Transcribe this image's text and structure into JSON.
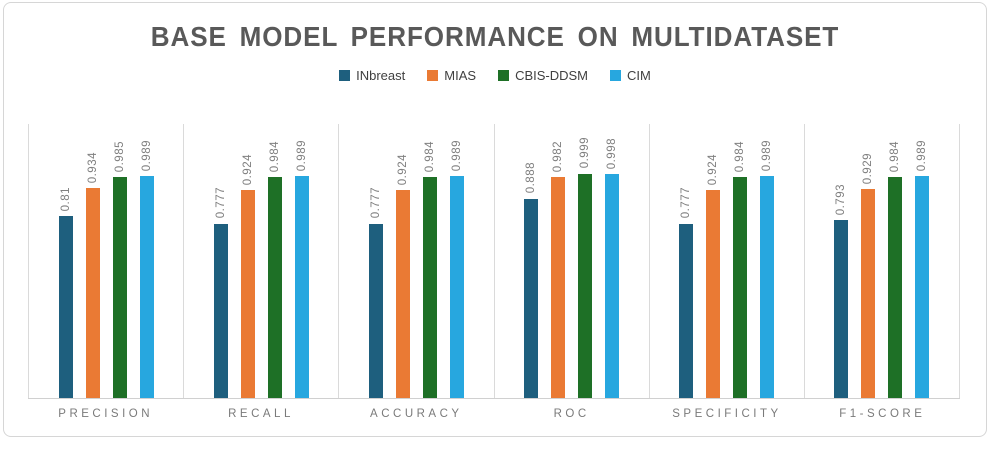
{
  "chart_data": {
    "type": "bar",
    "title": "BASE MODEL PERFORMANCE ON MULTIDATASET",
    "categories": [
      "PRECISION",
      "RECALL",
      "ACCURACY",
      "ROC",
      "SPECIFICITY",
      "F1-SCORE"
    ],
    "series": [
      {
        "name": "INbreast",
        "color": "#1e5f7e",
        "values": [
          0.81,
          0.777,
          0.777,
          0.888,
          0.777,
          0.793
        ]
      },
      {
        "name": "MIAS",
        "color": "#ea7a34",
        "values": [
          0.934,
          0.924,
          0.924,
          0.982,
          0.924,
          0.929
        ]
      },
      {
        "name": "CBIS-DDSM",
        "color": "#1e7026",
        "values": [
          0.985,
          0.984,
          0.984,
          0.999,
          0.984,
          0.984
        ]
      },
      {
        "name": "CIM",
        "color": "#27a7df",
        "values": [
          0.989,
          0.989,
          0.989,
          0.998,
          0.989,
          0.989
        ]
      }
    ],
    "xlabel": "",
    "ylabel": "",
    "ylim": [
      0,
      1.22
    ],
    "value_axis_visible": false,
    "grid": "vertical-category-separators-only",
    "legend_position": "top-center",
    "data_labels": "rotated-90-above-bars",
    "colors": {
      "title_text": "#595959",
      "label_text": "#7f7f7f",
      "legend_text": "#404040",
      "gridline": "#dadada",
      "axis_line": "#d0d0d0",
      "panel_border": "#d6d6d6"
    }
  }
}
